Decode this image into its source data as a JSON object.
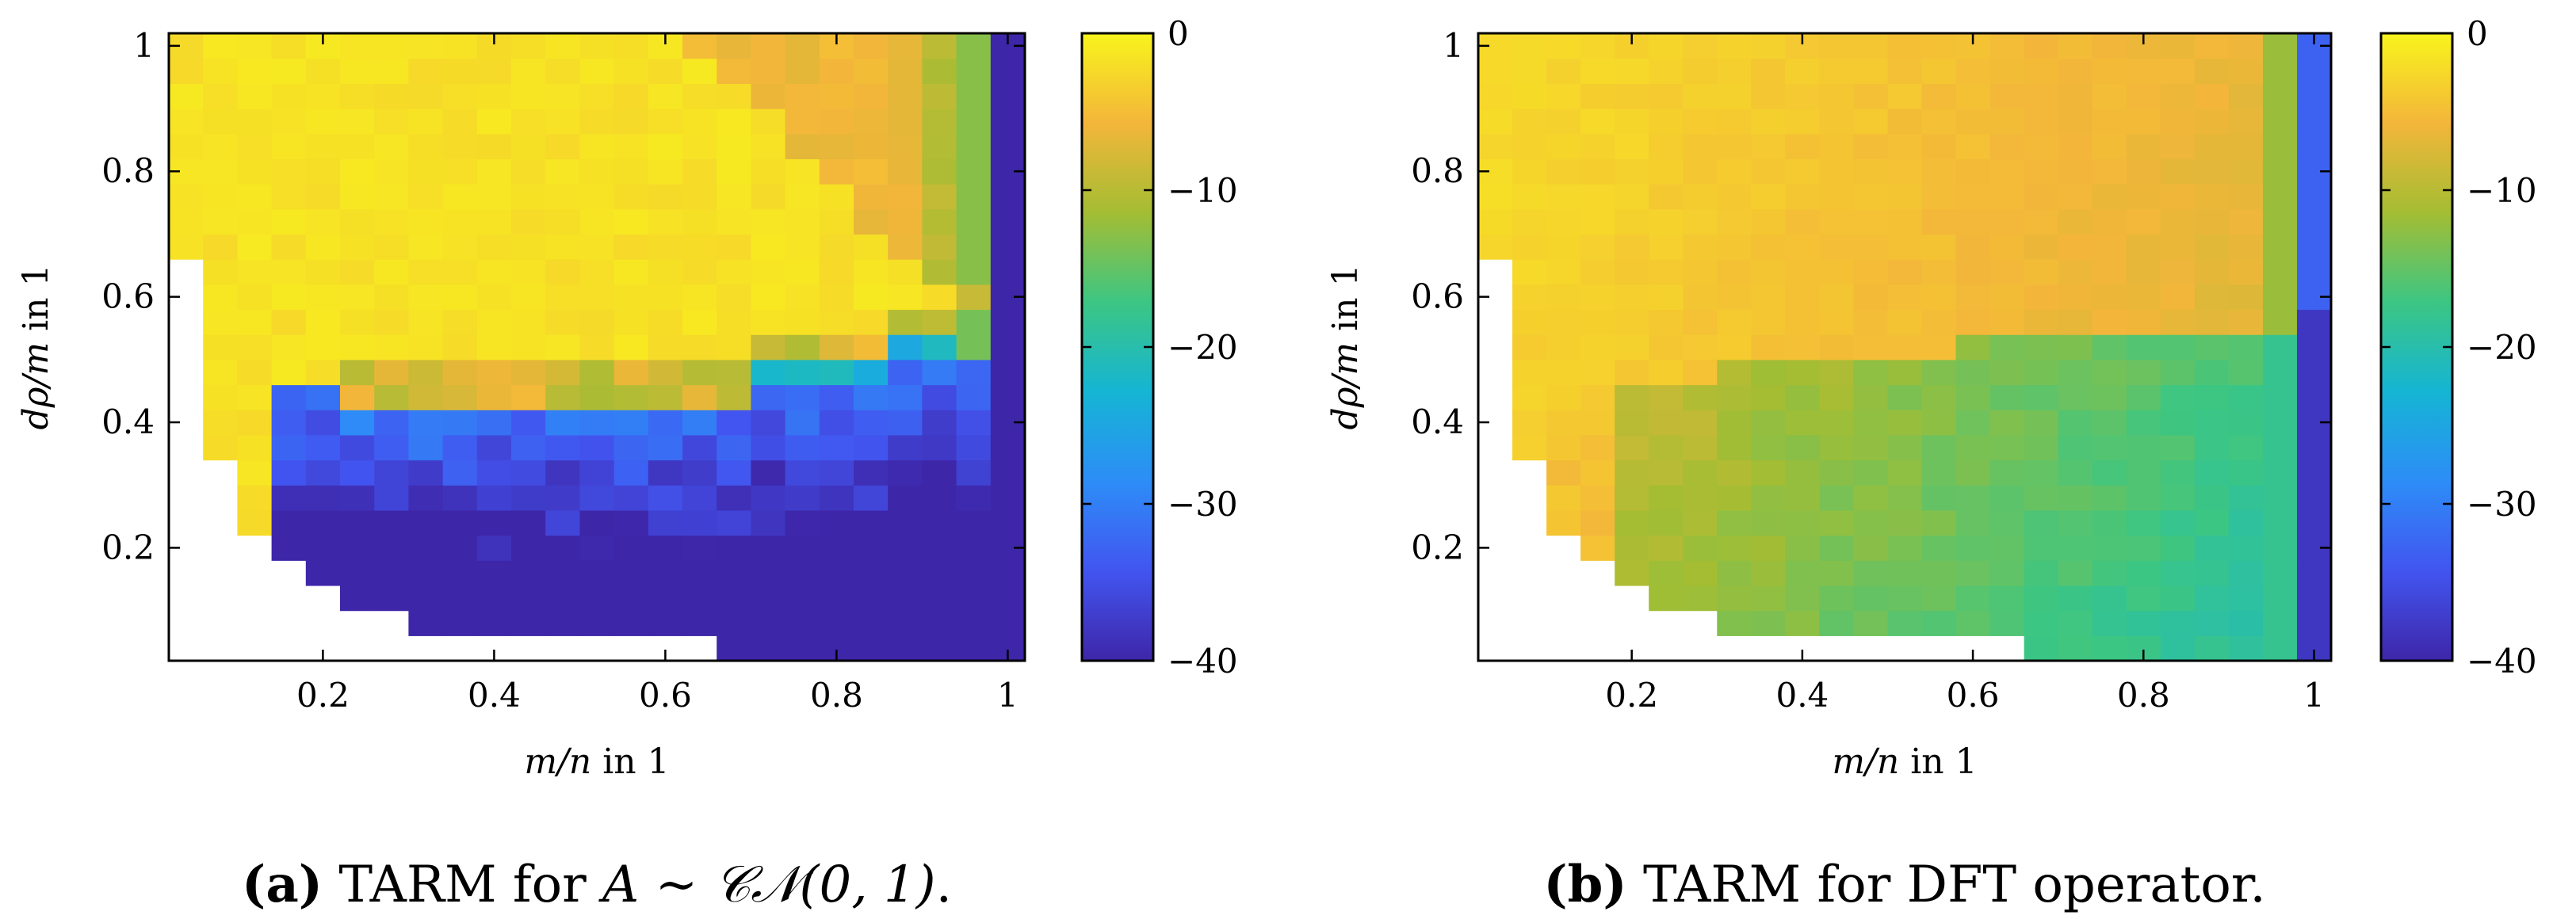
{
  "colorscale": {
    "stops": [
      "#3e26a8",
      "#4255f0",
      "#2d8df7",
      "#15b5d4",
      "#3cc683",
      "#a4bd33",
      "#f3b63a",
      "#f8f41c"
    ],
    "range": [
      -40,
      0
    ],
    "ticks": [
      {
        "v": 0,
        "label": "0"
      },
      {
        "v": -10,
        "label": "−10"
      },
      {
        "v": -20,
        "label": "−20"
      },
      {
        "v": -30,
        "label": "−30"
      },
      {
        "v": -40,
        "label": "−40"
      }
    ]
  },
  "chart_data": [
    {
      "type": "heatmap",
      "id": "a",
      "caption": {
        "label": "(a)",
        "text_prefix": " TARM for ",
        "math": "A ∼ 𝒞𝒩(0, 1)",
        "text_suffix": "."
      },
      "xlabel_var": "m/n",
      "xlabel_unit": " in 1",
      "ylabel_var": "dρ/m",
      "ylabel_unit": " in 1",
      "xticks": [
        {
          "v": 0.2,
          "label": "0.2"
        },
        {
          "v": 0.4,
          "label": "0.4"
        },
        {
          "v": 0.6,
          "label": "0.6"
        },
        {
          "v": 0.8,
          "label": "0.8"
        },
        {
          "v": 1,
          "label": "1"
        }
      ],
      "yticks": [
        {
          "v": 0.2,
          "label": "0.2"
        },
        {
          "v": 0.4,
          "label": "0.4"
        },
        {
          "v": 0.6,
          "label": "0.6"
        },
        {
          "v": 0.8,
          "label": "0.8"
        },
        {
          "v": 1,
          "label": "1"
        }
      ],
      "xlim": [
        0.02,
        1.02
      ],
      "ylim": [
        0.02,
        1.02
      ],
      "x_centers": [
        0.04,
        0.08,
        0.12,
        0.16,
        0.2,
        0.24,
        0.28,
        0.32,
        0.36,
        0.4,
        0.44,
        0.48,
        0.52,
        0.56,
        0.6,
        0.64,
        0.68,
        0.72,
        0.76,
        0.8,
        0.84,
        0.88,
        0.92,
        0.96,
        1.0
      ],
      "y_centers": [
        0.04,
        0.08,
        0.12,
        0.16,
        0.2,
        0.24,
        0.28,
        0.32,
        0.36,
        0.4,
        0.44,
        0.48,
        0.52,
        0.56,
        0.6,
        0.64,
        0.68,
        0.72,
        0.76,
        0.8,
        0.84,
        0.88,
        0.92,
        0.96,
        1.0
      ],
      "cell_size": 0.04,
      "min_y_by_col": [
        0.68,
        0.36,
        0.24,
        0.2,
        0.16,
        0.12,
        0.12,
        0.08,
        0.08,
        0.08,
        0.08,
        0.08,
        0.08,
        0.08,
        0.08,
        0.08,
        0.04,
        0.04,
        0.04,
        0.04,
        0.04,
        0.04,
        0.04,
        0.04,
        0.04
      ],
      "max_y_by_col": [
        1.0,
        1.0,
        1.0,
        1.0,
        1.0,
        1.0,
        1.0,
        1.0,
        1.0,
        1.0,
        1.0,
        1.0,
        1.0,
        1.0,
        1.0,
        1.0,
        1.0,
        1.0,
        1.0,
        1.0,
        1.0,
        1.0,
        1.0,
        1.0,
        1.0
      ],
      "boundary_by_col": [
        0.68,
        0.36,
        0.24,
        0.48,
        0.48,
        0.44,
        0.44,
        0.44,
        0.44,
        0.44,
        0.44,
        0.44,
        0.44,
        0.44,
        0.44,
        0.44,
        0.44,
        0.48,
        0.48,
        0.48,
        0.48,
        0.52,
        0.52,
        0.52,
        0.52
      ],
      "yellow_top_by_col": [
        1.0,
        1.0,
        1.0,
        1.0,
        1.0,
        1.0,
        1.0,
        1.0,
        1.0,
        1.0,
        1.0,
        1.0,
        1.0,
        1.0,
        1.0,
        0.96,
        0.92,
        0.88,
        0.8,
        0.76,
        0.68,
        0.64,
        0.6,
        0.56,
        0.56
      ],
      "upper_values": "near 0 dB (yellow) below the diagonal, about -5 dB (orange) in the upper right, -10 to -15 dB near m/n = 0.96, -40 dB at m/n = 1",
      "lower_values": "about -30 dB at the recovery boundary decreasing to -40 dB at small dρ/m"
    },
    {
      "type": "heatmap",
      "id": "b",
      "caption": {
        "label": "(b)",
        "text_prefix": " TARM for DFT operator.",
        "math": "",
        "text_suffix": ""
      },
      "xlabel_var": "m/n",
      "xlabel_unit": " in 1",
      "ylabel_var": "dρ/m",
      "ylabel_unit": " in 1",
      "xticks": [
        {
          "v": 0.2,
          "label": "0.2"
        },
        {
          "v": 0.4,
          "label": "0.4"
        },
        {
          "v": 0.6,
          "label": "0.6"
        },
        {
          "v": 0.8,
          "label": "0.8"
        },
        {
          "v": 1,
          "label": "1"
        }
      ],
      "yticks": [
        {
          "v": 0.2,
          "label": "0.2"
        },
        {
          "v": 0.4,
          "label": "0.4"
        },
        {
          "v": 0.6,
          "label": "0.6"
        },
        {
          "v": 0.8,
          "label": "0.8"
        },
        {
          "v": 1,
          "label": "1"
        }
      ],
      "xlim": [
        0.02,
        1.02
      ],
      "ylim": [
        0.02,
        1.02
      ],
      "x_centers": [
        0.04,
        0.08,
        0.12,
        0.16,
        0.2,
        0.24,
        0.28,
        0.32,
        0.36,
        0.4,
        0.44,
        0.48,
        0.52,
        0.56,
        0.6,
        0.64,
        0.68,
        0.72,
        0.76,
        0.8,
        0.84,
        0.88,
        0.92,
        0.96,
        1.0
      ],
      "y_centers": [
        0.04,
        0.08,
        0.12,
        0.16,
        0.2,
        0.24,
        0.28,
        0.32,
        0.36,
        0.4,
        0.44,
        0.48,
        0.52,
        0.56,
        0.6,
        0.64,
        0.68,
        0.72,
        0.76,
        0.8,
        0.84,
        0.88,
        0.92,
        0.96,
        1.0
      ],
      "cell_size": 0.04,
      "min_y_by_col": [
        0.68,
        0.36,
        0.24,
        0.2,
        0.16,
        0.12,
        0.12,
        0.08,
        0.08,
        0.08,
        0.08,
        0.08,
        0.08,
        0.08,
        0.08,
        0.08,
        0.04,
        0.04,
        0.04,
        0.04,
        0.04,
        0.04,
        0.04,
        0.04,
        0.04
      ],
      "max_y_by_col": [
        1.0,
        1.0,
        1.0,
        1.0,
        1.0,
        1.0,
        1.0,
        1.0,
        1.0,
        1.0,
        1.0,
        1.0,
        1.0,
        1.0,
        1.0,
        1.0,
        1.0,
        1.0,
        1.0,
        1.0,
        1.0,
        1.0,
        1.0,
        1.0,
        1.0
      ],
      "boundary_by_col": [
        0.68,
        0.36,
        0.36,
        0.44,
        0.48,
        0.48,
        0.48,
        0.52,
        0.52,
        0.52,
        0.52,
        0.52,
        0.52,
        0.52,
        0.56,
        0.56,
        0.56,
        0.56,
        0.56,
        0.56,
        0.56,
        0.56,
        0.56,
        0.56,
        0.56
      ],
      "upper_values": "about -2 dB (yellow) at small m/n to -5 dB (orange) near m/n = 0.8, -12 dB near 0.96, about -33 dB at m/n = 1",
      "lower_values": "about -10 dB (olive) near small m/n falling to about -18 dB (teal) at large m/n, about -38 dB at m/n = 1"
    }
  ]
}
